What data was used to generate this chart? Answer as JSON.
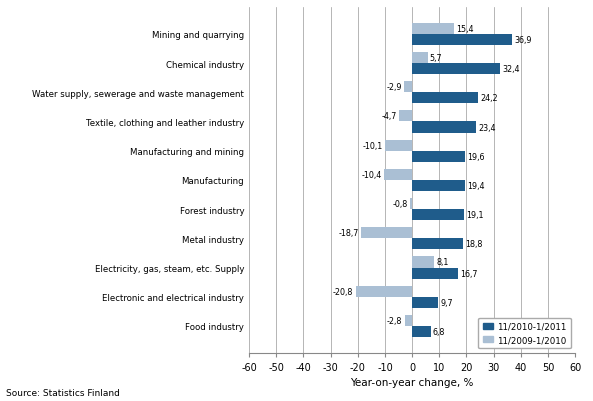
{
  "categories": [
    "Mining and quarrying",
    "Chemical industry",
    "Water supply, sewerage and waste management",
    "Textile, clothing and leather industry",
    "Manufacturing and mining",
    "Manufacturing",
    "Forest industry",
    "Metal industry",
    "Electricity, gas, steam, etc. Supply",
    "Electronic and electrical industry",
    "Food industry"
  ],
  "series_2010_2011": [
    36.9,
    32.4,
    24.2,
    23.4,
    19.6,
    19.4,
    19.1,
    18.8,
    16.7,
    9.7,
    6.8
  ],
  "series_2009_2010": [
    15.4,
    5.7,
    -2.9,
    -4.7,
    -10.1,
    -10.4,
    -0.8,
    -18.7,
    8.1,
    -20.8,
    -2.8
  ],
  "labels_2010_2011": [
    "36,9",
    "32,4",
    "24,2",
    "23,4",
    "19,6",
    "19,4",
    "19,1",
    "18,8",
    "16,7",
    "9,7",
    "6,8"
  ],
  "labels_2009_2010": [
    "15,4",
    "5,7",
    "-2,9",
    "-4,7",
    "-10,1",
    "-10,4",
    "-0,8",
    "-18,7",
    "8,1",
    "-20,8",
    "-2,8"
  ],
  "color_2010_2011": "#1F5C8B",
  "color_2009_2010": "#AABFD4",
  "xlim": [
    -60,
    60
  ],
  "xticks": [
    -60,
    -50,
    -40,
    -30,
    -20,
    -10,
    0,
    10,
    20,
    30,
    40,
    50,
    60
  ],
  "xlabel": "Year-on-year change, %",
  "legend_label_1": "11/2010-1/2011",
  "legend_label_2": "11/2009-1/2010",
  "source": "Source: Statistics Finland",
  "bar_height": 0.38
}
